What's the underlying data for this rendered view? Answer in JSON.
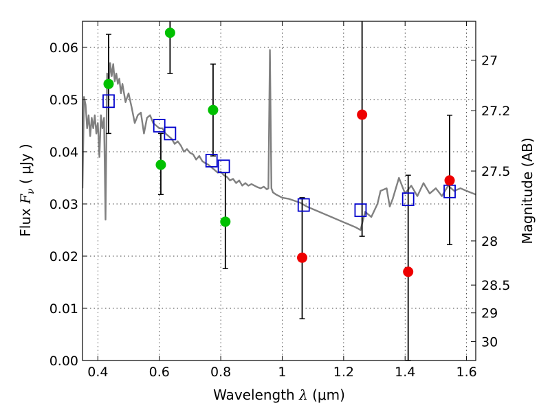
{
  "chart_data": {
    "type": "scatter",
    "title": "",
    "xlabel": "Wavelength  λ (μm)",
    "ylabel": "Flux  F_ν  ( μJy )",
    "ylabel_parts": {
      "prefix": "Flux  ",
      "symbol": "F",
      "subscript": "ν",
      "unit": "  ( μJy )"
    },
    "xlabel_parts": {
      "text": "Wavelength  ",
      "symbol": "λ",
      "unit": " (μm)"
    },
    "y2label": "Magnitude (AB)",
    "xlim": [
      0.35,
      1.63
    ],
    "ylim": [
      0.0,
      0.065
    ],
    "grid": true,
    "x_ticks": [
      0.4,
      0.6,
      0.8,
      1.0,
      1.2,
      1.4,
      1.6
    ],
    "x_tick_labels": [
      "0.4",
      "0.6",
      "0.8",
      "1",
      "1.2",
      "1.4",
      "1.6"
    ],
    "y_ticks": [
      0.0,
      0.01,
      0.02,
      0.03,
      0.04,
      0.05,
      0.06
    ],
    "y_tick_labels": [
      "0.00",
      "0.01",
      "0.02",
      "0.03",
      "0.04",
      "0.05",
      "0.06"
    ],
    "mag_ticks": [
      27,
      27.2,
      27.5,
      28,
      28.5,
      29,
      30
    ],
    "mag_tick_labels": [
      "27",
      "27.2",
      "27.5",
      "28",
      "28.5",
      "29",
      "30"
    ],
    "colors": {
      "model": "#808080",
      "detection": "#00c000",
      "non_detection": "#ee0000",
      "model_flux": "#0000cc",
      "errorbar": "#000000",
      "grid": "#000000"
    },
    "series": [
      {
        "kind": "model-spectrum",
        "x": [
          0.35,
          0.355,
          0.36,
          0.365,
          0.37,
          0.375,
          0.38,
          0.385,
          0.39,
          0.395,
          0.4,
          0.405,
          0.41,
          0.415,
          0.42,
          0.425,
          0.43,
          0.435,
          0.44,
          0.445,
          0.45,
          0.455,
          0.46,
          0.465,
          0.47,
          0.475,
          0.48,
          0.49,
          0.5,
          0.51,
          0.52,
          0.53,
          0.54,
          0.55,
          0.56,
          0.57,
          0.58,
          0.59,
          0.6,
          0.61,
          0.62,
          0.63,
          0.64,
          0.65,
          0.66,
          0.67,
          0.68,
          0.69,
          0.7,
          0.71,
          0.72,
          0.73,
          0.74,
          0.75,
          0.76,
          0.77,
          0.78,
          0.79,
          0.8,
          0.81,
          0.82,
          0.83,
          0.84,
          0.85,
          0.86,
          0.87,
          0.88,
          0.89,
          0.9,
          0.91,
          0.92,
          0.93,
          0.94,
          0.95,
          0.955,
          0.96,
          0.965,
          0.97,
          0.98,
          0.99,
          1.0,
          1.02,
          1.04,
          1.06,
          1.08,
          1.1,
          1.12,
          1.14,
          1.16,
          1.18,
          1.2,
          1.22,
          1.24,
          1.255,
          1.27,
          1.29,
          1.31,
          1.32,
          1.34,
          1.35,
          1.36,
          1.38,
          1.4,
          1.42,
          1.44,
          1.46,
          1.48,
          1.5,
          1.52,
          1.54,
          1.56,
          1.58,
          1.6,
          1.63
        ],
        "y": [
          0.033,
          0.0505,
          0.049,
          0.0445,
          0.047,
          0.043,
          0.0465,
          0.0445,
          0.047,
          0.0435,
          0.0455,
          0.039,
          0.047,
          0.0445,
          0.0465,
          0.027,
          0.055,
          0.0525,
          0.057,
          0.0545,
          0.0568,
          0.0535,
          0.055,
          0.053,
          0.054,
          0.0512,
          0.053,
          0.0495,
          0.0512,
          0.0485,
          0.0455,
          0.047,
          0.0475,
          0.0435,
          0.0465,
          0.047,
          0.0455,
          0.045,
          0.0445,
          0.0445,
          0.0435,
          0.043,
          0.0425,
          0.0415,
          0.042,
          0.0412,
          0.04,
          0.0405,
          0.0398,
          0.0395,
          0.0385,
          0.0392,
          0.0382,
          0.0378,
          0.0375,
          0.037,
          0.0365,
          0.036,
          0.0362,
          0.0355,
          0.0352,
          0.0345,
          0.0348,
          0.034,
          0.0345,
          0.0335,
          0.034,
          0.0335,
          0.0338,
          0.0335,
          0.0332,
          0.033,
          0.0333,
          0.0328,
          0.033,
          0.0595,
          0.033,
          0.0322,
          0.0318,
          0.0315,
          0.0312,
          0.031,
          0.0306,
          0.0302,
          0.0295,
          0.029,
          0.0285,
          0.028,
          0.0275,
          0.027,
          0.0265,
          0.026,
          0.0255,
          0.025,
          0.0285,
          0.0275,
          0.03,
          0.0325,
          0.033,
          0.0295,
          0.031,
          0.035,
          0.032,
          0.0335,
          0.0315,
          0.034,
          0.032,
          0.033,
          0.0315,
          0.0335,
          0.0325,
          0.033,
          0.0325,
          0.0318
        ]
      },
      {
        "kind": "detection",
        "x": [
          0.435,
          0.635,
          0.605,
          0.775,
          0.815
        ],
        "y": [
          0.053,
          0.0628,
          0.0375,
          0.048,
          0.0266
        ],
        "err": [
          [
            0.0435,
            0.0625
          ],
          [
            0.055,
            0.0655
          ],
          [
            0.0318,
            0.0435
          ],
          [
            0.0392,
            0.0568
          ],
          [
            0.0176,
            0.036
          ]
        ]
      },
      {
        "kind": "non-detection",
        "x": [
          1.065,
          1.26,
          1.41,
          1.545
        ],
        "y": [
          0.0197,
          0.0471,
          0.017,
          0.0345
        ],
        "err": [
          [
            0.008,
            0.0312
          ],
          [
            0.0238,
            0.066
          ],
          [
            0.0,
            0.0355
          ],
          [
            0.0222,
            0.047
          ]
        ]
      },
      {
        "kind": "model-band-flux",
        "x": [
          0.435,
          0.6,
          0.635,
          0.77,
          0.81,
          1.07,
          1.255,
          1.41,
          1.545
        ],
        "y": [
          0.0497,
          0.045,
          0.0435,
          0.0383,
          0.0372,
          0.0298,
          0.0288,
          0.0309,
          0.0324
        ]
      }
    ]
  }
}
